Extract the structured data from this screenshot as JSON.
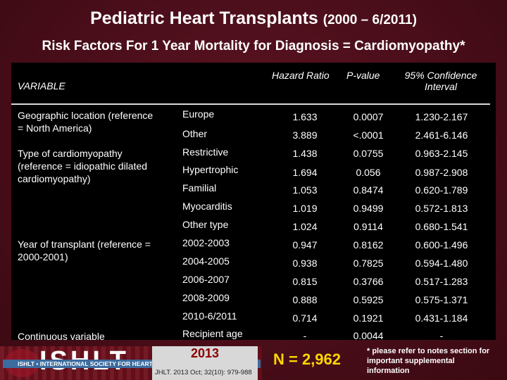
{
  "title": {
    "main": "Pediatric Heart Transplants",
    "dates": "(2000 – 6/2011)"
  },
  "subtitle": "Risk Factors For 1 Year Mortality for Diagnosis = Cardiomyopathy*",
  "table": {
    "headers": {
      "variable": "VARIABLE",
      "hazard_ratio": "Hazard Ratio",
      "p_value": "P-value",
      "ci_line1": "95% Confidence",
      "ci_line2": "Interval"
    },
    "variables": [
      {
        "line1": "Geographic location (reference",
        "line2": "= North America)",
        "line3": ""
      },
      {
        "line1": "Type of cardiomyopathy",
        "line2": "(reference = idiopathic dilated",
        "line3": "cardiomyopathy)"
      },
      {
        "line1": "Year of transplant (reference =",
        "line2": "2000-2001)",
        "line3": ""
      },
      {
        "line1": "Continuous variable",
        "line2": "",
        "line3": ""
      }
    ],
    "rows": [
      {
        "sub": "Europe",
        "hr": "1.633",
        "p": "0.0007",
        "ci": "1.230-2.167"
      },
      {
        "sub": "Other",
        "hr": "3.889",
        "p": "<.0001",
        "ci": "2.461-6.146"
      },
      {
        "sub": "Restrictive",
        "hr": "1.438",
        "p": "0.0755",
        "ci": "0.963-2.145"
      },
      {
        "sub": "Hypertrophic",
        "hr": "1.694",
        "p": "0.056",
        "ci": "0.987-2.908"
      },
      {
        "sub": "Familial",
        "hr": "1.053",
        "p": "0.8474",
        "ci": "0.620-1.789"
      },
      {
        "sub": "Myocarditis",
        "hr": "1.019",
        "p": "0.9499",
        "ci": "0.572-1.813"
      },
      {
        "sub": "Other type",
        "hr": "1.024",
        "p": "0.9114",
        "ci": "0.680-1.541"
      },
      {
        "sub": "2002-2003",
        "hr": "0.947",
        "p": "0.8162",
        "ci": "0.600-1.496"
      },
      {
        "sub": "2004-2005",
        "hr": "0.938",
        "p": "0.7825",
        "ci": "0.594-1.480"
      },
      {
        "sub": "2006-2007",
        "hr": "0.815",
        "p": "0.3766",
        "ci": "0.517-1.283"
      },
      {
        "sub": "2008-2009",
        "hr": "0.888",
        "p": "0.5925",
        "ci": "0.575-1.371"
      },
      {
        "sub": "2010-6/2011",
        "hr": "0.714",
        "p": "0.1921",
        "ci": "0.431-1.184"
      },
      {
        "sub": "Recipient age",
        "hr": "-",
        "p": "0.0044",
        "ci": "-"
      }
    ]
  },
  "footer": {
    "logo_text": "ISHLT",
    "society": "ISHLT • INTERNATIONAL SOCIETY FOR HEART AND LUNG TRANSPLANTATION",
    "year": "2013",
    "citation": "JHLT. 2013 Oct; 32(10): 979-988",
    "n": "N = 2,962",
    "note": "* please refer to notes section for important supplemental information"
  },
  "colors": {
    "background": "#4a0e1a",
    "panel": "#000000",
    "n_color": "#ffd700",
    "logo_blue": "#3c6b9e"
  }
}
